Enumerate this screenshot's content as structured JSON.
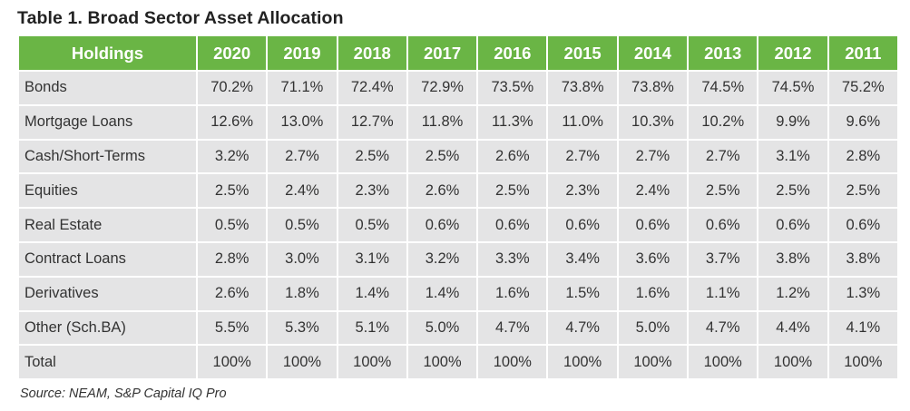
{
  "title": "Table 1. Broad Sector Asset Allocation",
  "source": "Source: NEAM, S&P Capital IQ Pro",
  "colors": {
    "header_bg": "#6ab545",
    "header_text": "#ffffff",
    "cell_bg": "#e4e4e5",
    "text": "#333333"
  },
  "table": {
    "columns": [
      "Holdings",
      "2020",
      "2019",
      "2018",
      "2017",
      "2016",
      "2015",
      "2014",
      "2013",
      "2012",
      "2011"
    ],
    "rows": [
      {
        "label": "Bonds",
        "values": [
          "70.2%",
          "71.1%",
          "72.4%",
          "72.9%",
          "73.5%",
          "73.8%",
          "73.8%",
          "74.5%",
          "74.5%",
          "75.2%"
        ]
      },
      {
        "label": "Mortgage Loans",
        "values": [
          "12.6%",
          "13.0%",
          "12.7%",
          "11.8%",
          "11.3%",
          "11.0%",
          "10.3%",
          "10.2%",
          "9.9%",
          "9.6%"
        ]
      },
      {
        "label": "Cash/Short-Terms",
        "values": [
          "3.2%",
          "2.7%",
          "2.5%",
          "2.5%",
          "2.6%",
          "2.7%",
          "2.7%",
          "2.7%",
          "3.1%",
          "2.8%"
        ]
      },
      {
        "label": "Equities",
        "values": [
          "2.5%",
          "2.4%",
          "2.3%",
          "2.6%",
          "2.5%",
          "2.3%",
          "2.4%",
          "2.5%",
          "2.5%",
          "2.5%"
        ]
      },
      {
        "label": "Real Estate",
        "values": [
          "0.5%",
          "0.5%",
          "0.5%",
          "0.6%",
          "0.6%",
          "0.6%",
          "0.6%",
          "0.6%",
          "0.6%",
          "0.6%"
        ]
      },
      {
        "label": "Contract Loans",
        "values": [
          "2.8%",
          "3.0%",
          "3.1%",
          "3.2%",
          "3.3%",
          "3.4%",
          "3.6%",
          "3.7%",
          "3.8%",
          "3.8%"
        ]
      },
      {
        "label": "Derivatives",
        "values": [
          "2.6%",
          "1.8%",
          "1.4%",
          "1.4%",
          "1.6%",
          "1.5%",
          "1.6%",
          "1.1%",
          "1.2%",
          "1.3%"
        ]
      },
      {
        "label": "Other (Sch.BA)",
        "values": [
          "5.5%",
          "5.3%",
          "5.1%",
          "5.0%",
          "4.7%",
          "4.7%",
          "5.0%",
          "4.7%",
          "4.4%",
          "4.1%"
        ]
      },
      {
        "label": "Total",
        "values": [
          "100%",
          "100%",
          "100%",
          "100%",
          "100%",
          "100%",
          "100%",
          "100%",
          "100%",
          "100%"
        ]
      }
    ]
  }
}
